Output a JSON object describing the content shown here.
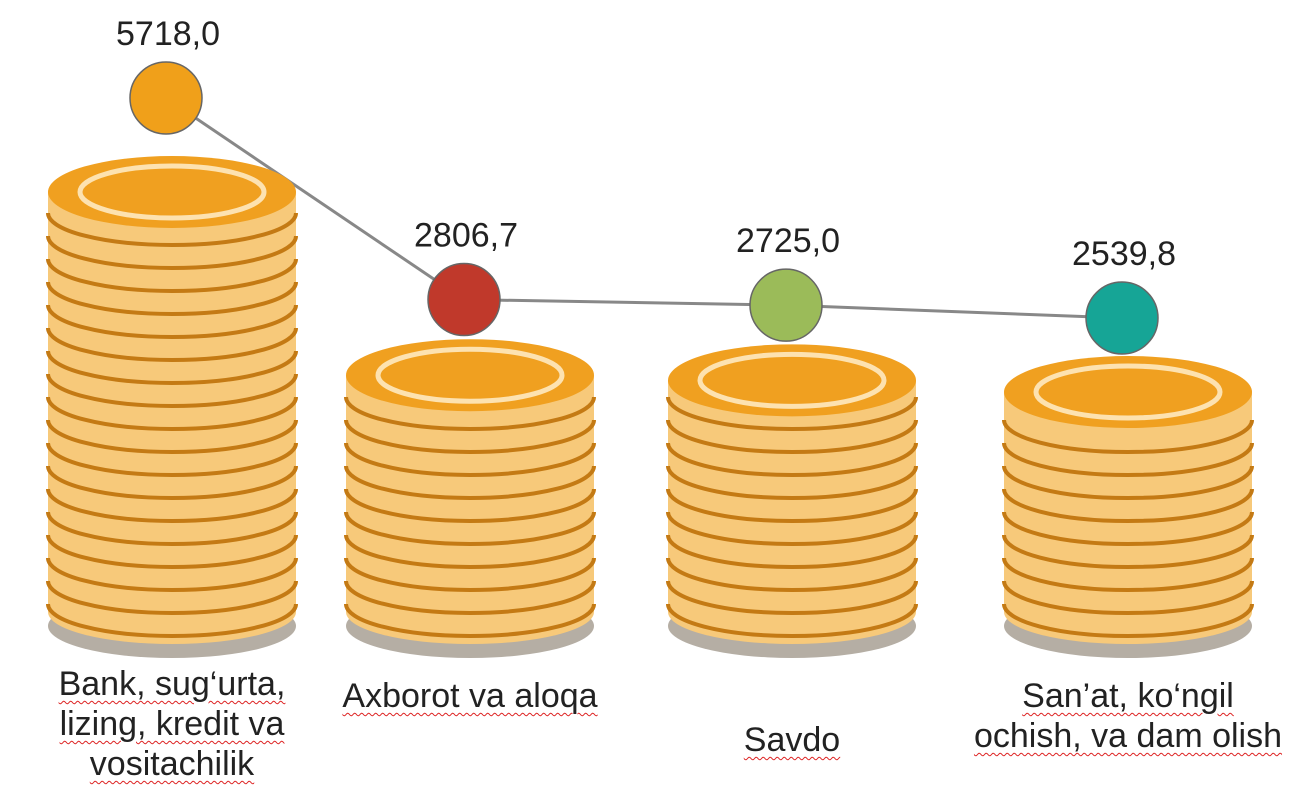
{
  "chart_data": {
    "type": "coin-stack",
    "categories": [
      "Bank, sug‘urta, lizing, kredit va vositachilik",
      "Axborot va aloqa",
      "Savdo",
      "San’at, ko‘ngil ochish, va dam olish"
    ],
    "values": [
      5718.0,
      2806.7,
      2725.0,
      2539.8
    ],
    "value_labels": [
      "5718,0",
      "2806,7",
      "2725,0",
      "2539,8"
    ],
    "colors": [
      "#f0a01a",
      "#c0392b",
      "#9bbb59",
      "#16a596"
    ]
  }
}
